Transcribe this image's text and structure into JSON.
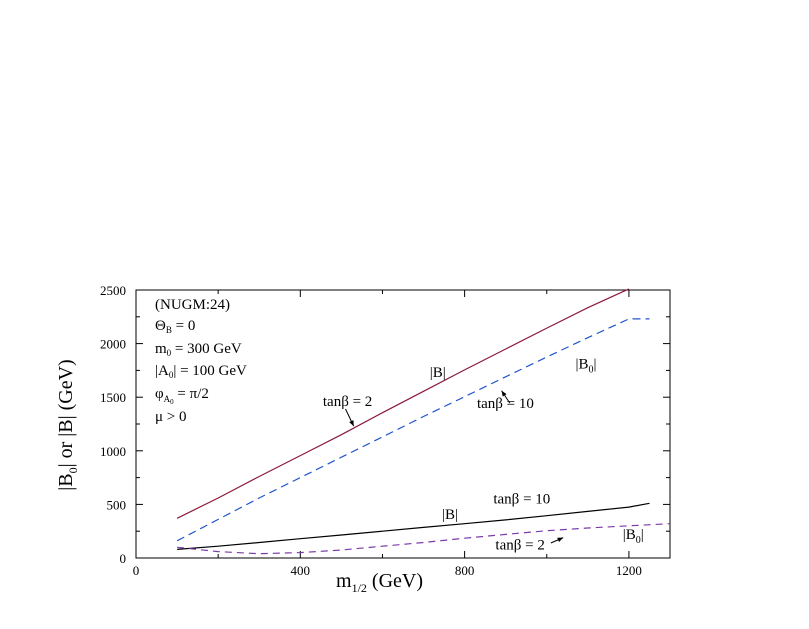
{
  "chart_data": {
    "type": "line",
    "xlabel_main": "m",
    "xlabel_sub": "1/2",
    "xlabel_unit": " (GeV)",
    "ylabel": "|B",
    "ylabel_sub": "0",
    "ylabel_rest": "| or |B| (GeV)",
    "xlim": [
      0,
      1300
    ],
    "ylim": [
      0,
      2500
    ],
    "x_ticks": [
      0,
      400,
      800,
      1200
    ],
    "x_tick_labels": [
      "0",
      "400",
      "800",
      "1200"
    ],
    "y_ticks": [
      0,
      500,
      1000,
      1500,
      2000,
      2500
    ],
    "y_tick_labels": [
      "0",
      "500",
      "1000",
      "1500",
      "2000",
      "2500"
    ],
    "annotations_box": [
      "(NUGM:24)",
      "Θ_B = 0",
      "m_0 = 300 GeV",
      "|A_0| = 100 GeV",
      "φ_A0 = π/2",
      "μ > 0"
    ],
    "series": [
      {
        "key": "B_tan2",
        "color": "#8b1a3a",
        "dash": "none",
        "x": [
          100,
          200,
          300,
          400,
          500,
          600,
          700,
          800,
          900,
          1000,
          1100,
          1200
        ],
        "y": [
          370,
          560,
          760,
          955,
          1150,
          1355,
          1555,
          1755,
          1950,
          2145,
          2335,
          2510
        ]
      },
      {
        "key": "B0_tan10",
        "color": "#2255cc",
        "dash": "8,5",
        "x": [
          100,
          200,
          300,
          400,
          500,
          600,
          700,
          800,
          900,
          1000,
          1100,
          1200,
          1250
        ],
        "y": [
          160,
          360,
          560,
          750,
          940,
          1130,
          1320,
          1505,
          1690,
          1875,
          2055,
          2230,
          2230
        ]
      },
      {
        "key": "B_tan10",
        "color": "#000000",
        "dash": "none",
        "x": [
          100,
          200,
          300,
          400,
          500,
          600,
          700,
          800,
          900,
          1000,
          1100,
          1200,
          1250
        ],
        "y": [
          80,
          110,
          145,
          180,
          215,
          250,
          285,
          320,
          355,
          395,
          435,
          475,
          510
        ]
      },
      {
        "key": "B0_tan2",
        "color": "#7a3aa8",
        "dash": "7,5",
        "x": [
          100,
          200,
          300,
          400,
          500,
          600,
          700,
          800,
          900,
          1000,
          1100,
          1200,
          1300
        ],
        "y": [
          100,
          60,
          40,
          50,
          75,
          110,
          145,
          185,
          220,
          255,
          280,
          300,
          320
        ]
      }
    ],
    "curve_labels": [
      {
        "text": "|B|",
        "x": 715,
        "y": 1690
      },
      {
        "text": "|B",
        "sub": "0",
        "tail": "|",
        "x": 1070,
        "y": 1770
      },
      {
        "text": "tanβ = 2",
        "x": 455,
        "y": 1420
      },
      {
        "text": "tanβ = 10",
        "x": 830,
        "y": 1400
      },
      {
        "text": "|B|",
        "x": 745,
        "y": 365
      },
      {
        "text": "tanβ = 10",
        "x": 870,
        "y": 510
      },
      {
        "text": "tanβ = 2",
        "x": 875,
        "y": 80
      },
      {
        "text": "|B",
        "sub": "0",
        "tail": "|",
        "x": 1185,
        "y": 175
      }
    ]
  }
}
